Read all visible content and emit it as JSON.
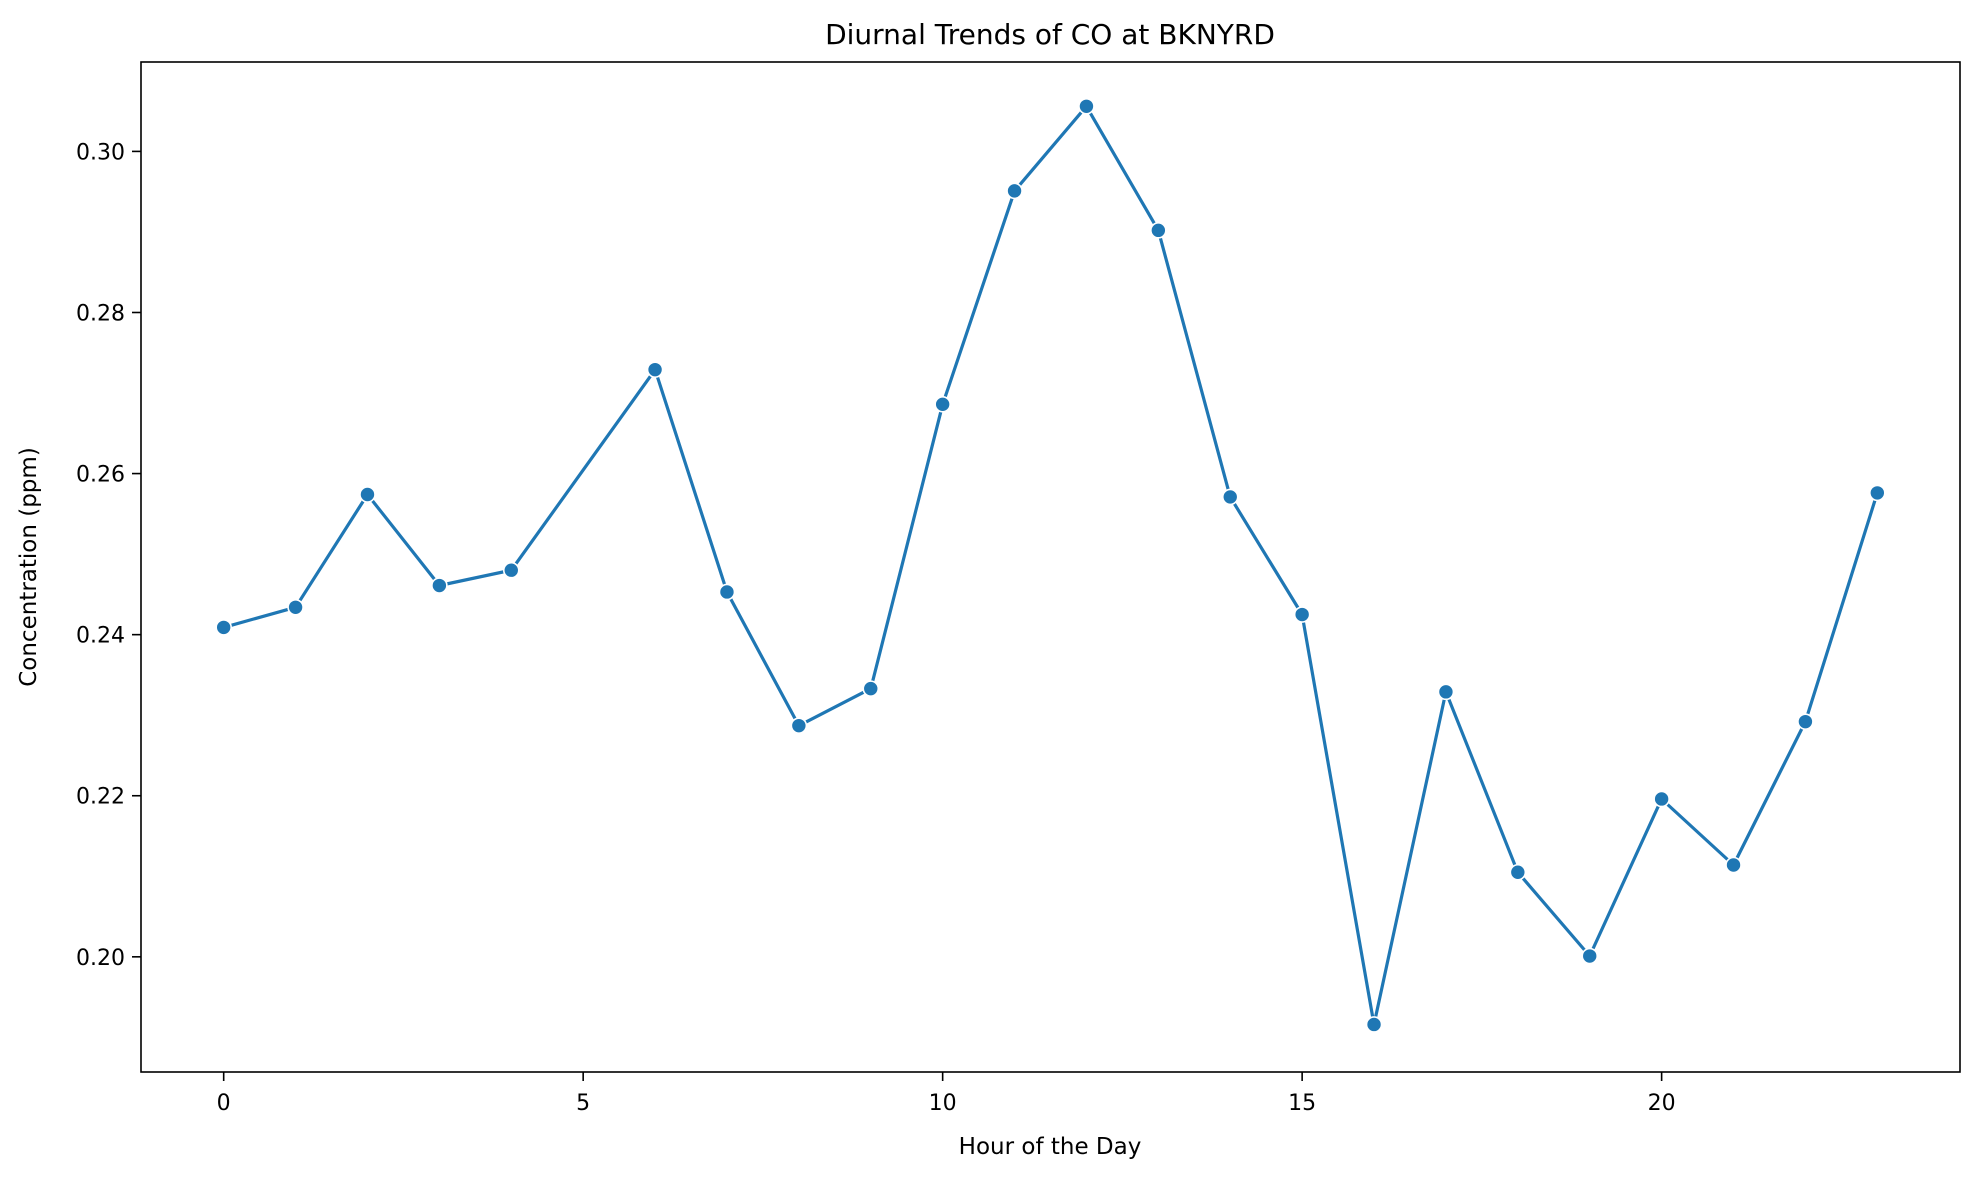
{
  "chart_data": {
    "type": "line",
    "title": "Diurnal Trends of CO at BKNYRD",
    "xlabel": "Hour of the Day",
    "ylabel": "Concentration (ppm)",
    "xlim": [
      -1.15,
      24.15
    ],
    "ylim": [
      0.1857,
      0.3111
    ],
    "xticks": [
      0,
      5,
      10,
      15,
      20
    ],
    "yticks": [
      0.2,
      0.22,
      0.24,
      0.26,
      0.28,
      0.3
    ],
    "ytick_labels": [
      "0.20",
      "0.22",
      "0.24",
      "0.26",
      "0.28",
      "0.30"
    ],
    "grid": false,
    "legend": "none",
    "color": "#1f77b4",
    "x": [
      0,
      1,
      2,
      3,
      4,
      6,
      7,
      8,
      9,
      10,
      11,
      12,
      13,
      14,
      15,
      16,
      17,
      18,
      19,
      20,
      21,
      22,
      23
    ],
    "values": [
      0.2409,
      0.2434,
      0.2574,
      0.2461,
      0.248,
      0.2729,
      0.2453,
      0.2287,
      0.2333,
      0.2686,
      0.2951,
      0.3056,
      0.2902,
      0.2571,
      0.2425,
      0.1916,
      0.2329,
      0.2105,
      0.2001,
      0.2196,
      0.2114,
      0.2292,
      0.2576
    ]
  }
}
